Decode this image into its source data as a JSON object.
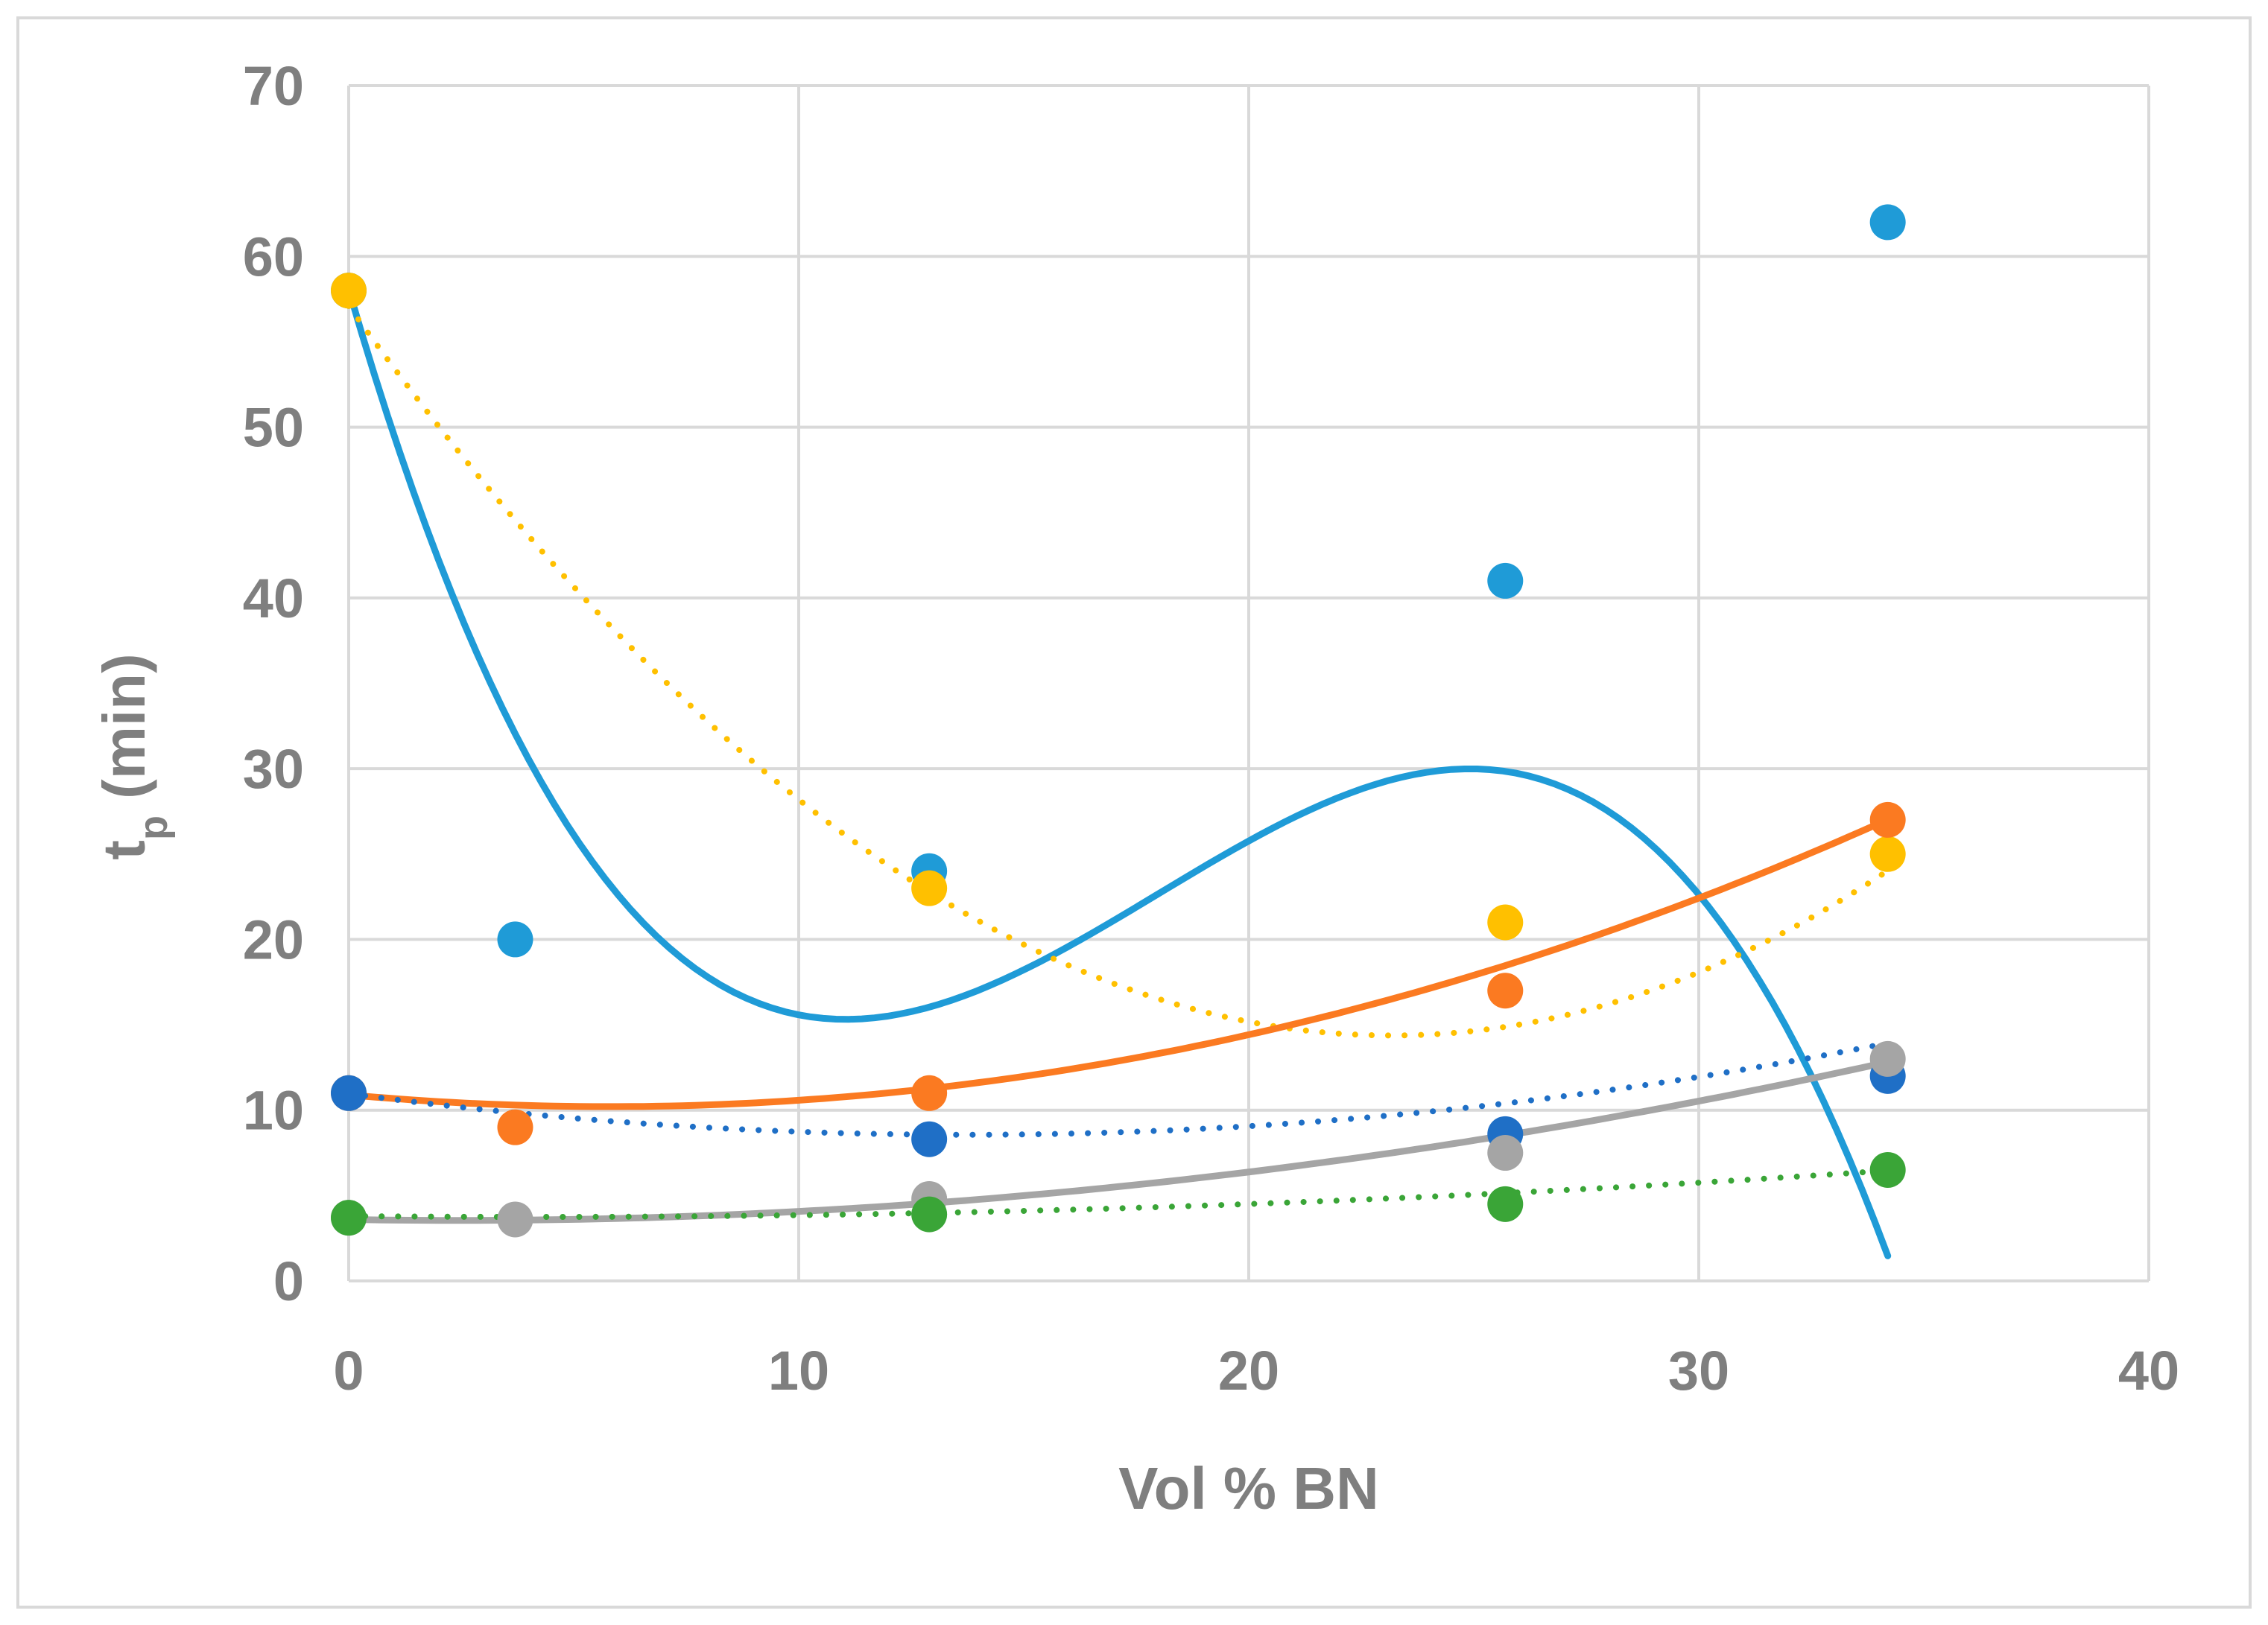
{
  "chart_data": {
    "type": "scatter",
    "title": "",
    "xlabel": "Vol % BN",
    "ylabel": {
      "main": "t",
      "sub": "p",
      "suffix": " (min)"
    },
    "xlim": [
      0,
      40
    ],
    "ylim": [
      0,
      70
    ],
    "xticks": [
      0,
      10,
      20,
      30,
      40
    ],
    "yticks": [
      0,
      10,
      20,
      30,
      40,
      50,
      60,
      70
    ],
    "grid": true,
    "legend": "none",
    "series": [
      {
        "color": "#1f9bd7",
        "points": [
          [
            0,
            58
          ],
          [
            3.7,
            20
          ],
          [
            12.9,
            24
          ],
          [
            25.7,
            41
          ],
          [
            34.2,
            62
          ]
        ],
        "trend": {
          "style": "solid",
          "poly": [
            58.08,
            -9.0837,
            0.5934,
            -0.011
          ],
          "range": [
            0,
            34.2
          ]
        }
      },
      {
        "color": "#ffc000",
        "points": [
          [
            0,
            58
          ],
          [
            12.9,
            23
          ],
          [
            25.7,
            21
          ],
          [
            34.2,
            25
          ]
        ],
        "trend": {
          "style": "dotted",
          "poly": [
            57.1,
            -3.686,
            0.0795
          ],
          "range": [
            0,
            34.2
          ]
        }
      },
      {
        "color": "#fb7a21",
        "points": [
          [
            0,
            11
          ],
          [
            3.7,
            9
          ],
          [
            12.9,
            11
          ],
          [
            25.7,
            17
          ],
          [
            34.2,
            27
          ]
        ],
        "trend": {
          "style": "solid",
          "poly": [
            10.9,
            -0.24,
            0.0208
          ],
          "range": [
            0,
            34.2
          ]
        }
      },
      {
        "color": "#1f6fc6",
        "points": [
          [
            0,
            11
          ],
          [
            12.9,
            8.3
          ],
          [
            25.7,
            8.6
          ],
          [
            34.2,
            12
          ]
        ],
        "trend": {
          "style": "dotted",
          "poly": [
            10.97,
            -0.3513,
            0.0128
          ],
          "range": [
            0,
            34.2
          ]
        }
      },
      {
        "color": "#a5a5a5",
        "points": [
          [
            0,
            3.7
          ],
          [
            3.7,
            3.6
          ],
          [
            12.9,
            4.8
          ],
          [
            25.7,
            7.5
          ],
          [
            34.2,
            13
          ]
        ],
        "trend": {
          "style": "solid",
          "poly": [
            3.6,
            -0.045,
            0.0092
          ],
          "range": [
            0,
            34.2
          ]
        }
      },
      {
        "color": "#3aa537",
        "points": [
          [
            0,
            3.7
          ],
          [
            12.9,
            3.9
          ],
          [
            25.7,
            4.5
          ],
          [
            34.2,
            6.5
          ]
        ],
        "trend": {
          "style": "dotted",
          "poly": [
            3.8,
            -0.0248,
            0.003
          ],
          "range": [
            0,
            34.2
          ]
        }
      }
    ]
  }
}
